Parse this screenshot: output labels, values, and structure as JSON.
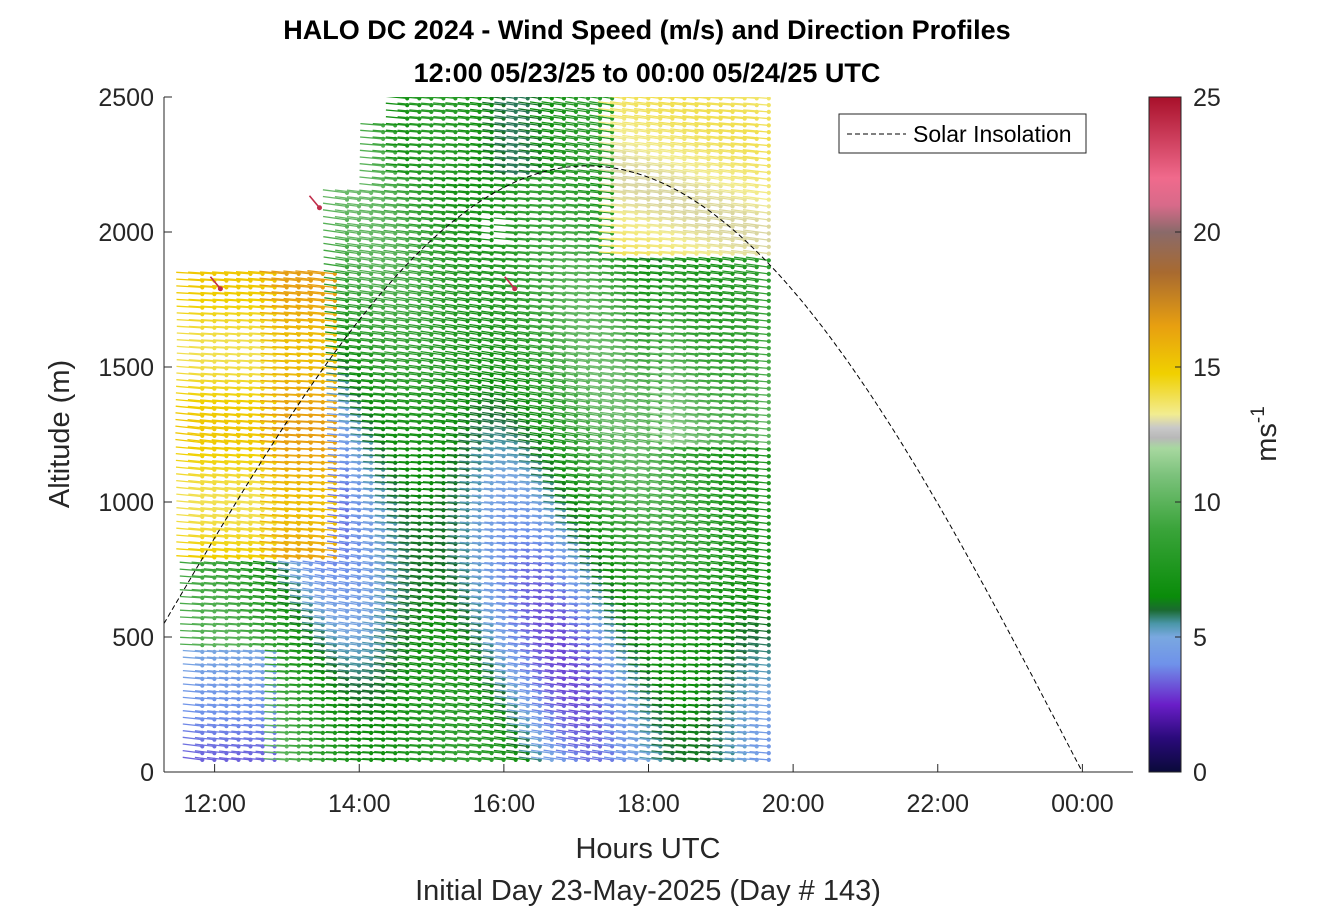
{
  "chart_data": {
    "type": "wind-barb-profile",
    "title_line1": "HALO DC 2024 - Wind Speed (m/s) and Direction Profiles",
    "title_line2": "12:00 05/23/25 to 00:00 05/24/25  UTC",
    "xlabel": "Hours UTC",
    "xlabel2": "Initial Day 23-May-2025 (Day # 143)",
    "ylabel": "Altitude (m)",
    "xlim": [
      11.3,
      24.7
    ],
    "ylim": [
      0,
      2500
    ],
    "x_ticks": [
      12,
      14,
      16,
      18,
      20,
      22,
      24
    ],
    "x_tick_labels": [
      "12:00",
      "14:00",
      "16:00",
      "18:00",
      "20:00",
      "22:00",
      "00:00"
    ],
    "y_ticks": [
      0,
      500,
      1000,
      1500,
      2000,
      2500
    ],
    "y_tick_labels": [
      "0",
      "500",
      "1000",
      "1500",
      "2000",
      "2500"
    ],
    "legend": {
      "entry": "Solar Insolation",
      "style": "dashed black line",
      "location": "top-right"
    },
    "colorbar": {
      "label": "ms",
      "label_exponent": "-1",
      "range": [
        0,
        25
      ],
      "ticks": [
        0,
        5,
        10,
        15,
        20,
        25
      ],
      "tick_labels": [
        "0",
        "5",
        "10",
        "15",
        "20",
        "25"
      ]
    },
    "profile_time_range": [
      11.83,
      19.75
    ],
    "profile_interval_min": 10,
    "wind_vectors": "wind vectors at every profile time and altitude level from about 40 m up to 2500 m; mostly green (6-11 m/s), yellow-orange (13-17 m/s) between 800 and 1850 m before 13:45 UTC, blue-purple (2-5 m/s) below 450 m before 12:50 UTC",
    "solar_insolation": {
      "start_hour": 11.3,
      "start_alt": 550,
      "peak_hour": 17.15,
      "peak_alt": 2245,
      "end_hour": 24.0
    }
  }
}
